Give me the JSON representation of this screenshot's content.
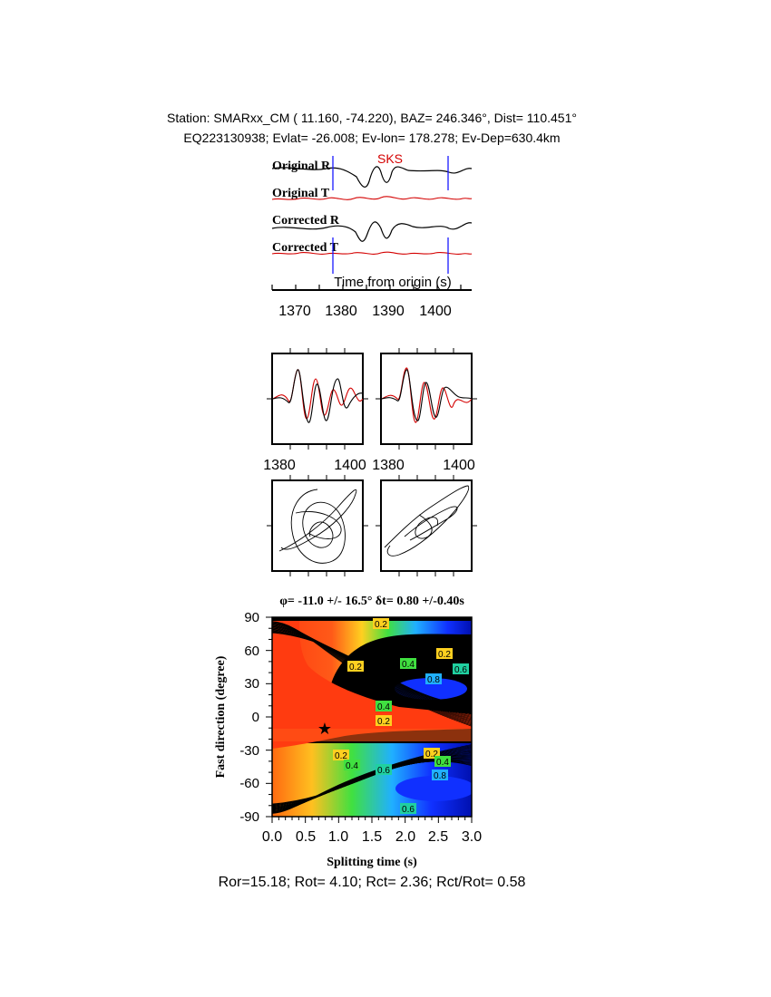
{
  "header": {
    "line1": "Station: SMARxx_CM (  11.160,  -74.220), BAZ=  246.346°, Dist=  110.451°",
    "line2": "EQ223130938; Evlat= -26.008; Ev-lon= 178.278; Ev-Dep=630.4km"
  },
  "traces": {
    "labels": [
      "Original R",
      "Original T",
      "Corrected R",
      "Corrected T"
    ],
    "phase_label": "SKS",
    "xlabel": "Time from origin (s)",
    "ticks": [
      "1370",
      "1380",
      "1390",
      "1400"
    ]
  },
  "waveform_panels": {
    "left_ticks": [
      "1380",
      "1400"
    ],
    "right_ticks": [
      "1380",
      "1400"
    ]
  },
  "grid_search": {
    "title": "φ= -11.0 +/- 16.5° δt= 0.80 +/-0.40s",
    "ylabel": "Fast direction (degree)",
    "xlabel": "Splitting time (s)",
    "yticks": [
      "90",
      "60",
      "30",
      "0",
      "-30",
      "-60",
      "-90"
    ],
    "xticks": [
      "0.0",
      "0.5",
      "1.0",
      "1.5",
      "2.0",
      "2.5",
      "3.0"
    ],
    "contour_labels": [
      "0.2",
      "0.2",
      "0.4",
      "0.6",
      "0.8",
      "0.2",
      "0.4",
      "0.2",
      "0.2",
      "0.4",
      "0.6",
      "0.2",
      "0.4",
      "0.8",
      "0.6"
    ]
  },
  "footer": {
    "stats": "Ror=15.18; Rot= 4.10; Rct= 2.36; Rct/Rot= 0.58"
  },
  "colors": {
    "trace_black": "#000000",
    "trace_red": "#d40000",
    "marker_blue": "#1a1aff"
  },
  "chart_data": {
    "type": "heatmap",
    "title": "φ= -11.0 +/- 16.5° δt= 0.80 +/-0.40s",
    "xlabel": "Splitting time (s)",
    "ylabel": "Fast direction (degree)",
    "xlim": [
      0.0,
      3.0
    ],
    "ylim": [
      -90,
      90
    ],
    "best_fit": {
      "splitting_time": 0.8,
      "fast_direction": -11.0
    },
    "contour_levels": [
      0.2,
      0.4,
      0.6,
      0.8
    ]
  }
}
